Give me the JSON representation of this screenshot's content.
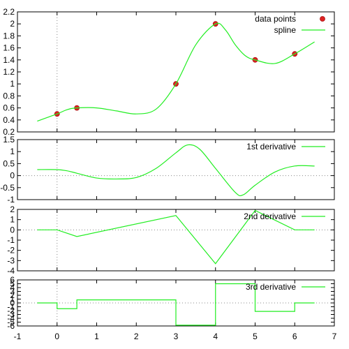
{
  "chart_data": [
    {
      "type": "line",
      "xlim": [
        -1,
        7
      ],
      "ylim": [
        0.2,
        2.2
      ],
      "yticks": [
        "0.2",
        "0.4",
        "0.6",
        "0.8",
        "1",
        "1.2",
        "1.4",
        "1.6",
        "1.8",
        "2",
        "2.2"
      ],
      "zero_axis": "dotted",
      "legend_position": "top-right",
      "series": [
        {
          "name": "data points",
          "kind": "scatter",
          "color": "#dd2222",
          "points": [
            [
              0,
              0.5
            ],
            [
              0.5,
              0.6
            ],
            [
              3,
              1.0
            ],
            [
              4,
              2.0
            ],
            [
              5,
              1.4
            ],
            [
              6,
              1.5
            ]
          ]
        },
        {
          "name": "spline",
          "kind": "line",
          "color": "#22ee22",
          "points": [
            [
              -0.5,
              0.38
            ],
            [
              0,
              0.5
            ],
            [
              0.25,
              0.57
            ],
            [
              0.5,
              0.6
            ],
            [
              1,
              0.6
            ],
            [
              1.5,
              0.55
            ],
            [
              2,
              0.5
            ],
            [
              2.5,
              0.58
            ],
            [
              3,
              1.0
            ],
            [
              3.5,
              1.65
            ],
            [
              4,
              2.0
            ],
            [
              4.25,
              1.9
            ],
            [
              4.5,
              1.65
            ],
            [
              4.75,
              1.47
            ],
            [
              5,
              1.4
            ],
            [
              5.5,
              1.34
            ],
            [
              6,
              1.5
            ],
            [
              6.5,
              1.7
            ]
          ]
        }
      ]
    },
    {
      "type": "line",
      "xlim": [
        -1,
        7
      ],
      "ylim": [
        -1,
        1.5
      ],
      "yticks": [
        "-1",
        "-0.5",
        "0",
        "0.5",
        "1",
        "1.5"
      ],
      "zero_axis": "dotted",
      "legend_position": "top-right",
      "series": [
        {
          "name": "1st derivative",
          "kind": "line",
          "color": "#22ee22",
          "points": [
            [
              -0.5,
              0.25
            ],
            [
              0,
              0.25
            ],
            [
              0.25,
              0.2
            ],
            [
              0.5,
              0.1
            ],
            [
              1,
              -0.1
            ],
            [
              1.5,
              -0.14
            ],
            [
              2,
              -0.08
            ],
            [
              2.5,
              0.3
            ],
            [
              3,
              0.95
            ],
            [
              3.3,
              1.28
            ],
            [
              3.6,
              1.1
            ],
            [
              4,
              0.3
            ],
            [
              4.5,
              -0.7
            ],
            [
              4.7,
              -0.8
            ],
            [
              5,
              -0.4
            ],
            [
              5.5,
              0.15
            ],
            [
              6,
              0.4
            ],
            [
              6.5,
              0.4
            ]
          ]
        }
      ]
    },
    {
      "type": "line",
      "xlim": [
        -1,
        7
      ],
      "ylim": [
        -4,
        2
      ],
      "yticks": [
        "-4",
        "-3",
        "-2",
        "-1",
        "0",
        "1",
        "2"
      ],
      "zero_axis": "dotted",
      "legend_position": "top-right",
      "series": [
        {
          "name": "2nd derivative",
          "kind": "line",
          "color": "#22ee22",
          "points": [
            [
              -0.5,
              0
            ],
            [
              0,
              0
            ],
            [
              0.5,
              -0.65
            ],
            [
              3,
              1.4
            ],
            [
              4,
              -3.3
            ],
            [
              5,
              1.9
            ],
            [
              6,
              0
            ],
            [
              6.5,
              0
            ]
          ]
        }
      ]
    },
    {
      "type": "line",
      "xlim": [
        -1,
        7
      ],
      "ylim": [
        -6,
        6
      ],
      "yticks": [
        "-6",
        "-5",
        "-4",
        "-3",
        "-2",
        "-1",
        "0",
        "1",
        "2",
        "3",
        "4",
        "5",
        "6"
      ],
      "xticks": [
        "-1",
        "0",
        "1",
        "2",
        "3",
        "4",
        "5",
        "6",
        "7"
      ],
      "zero_axis": "dotted",
      "legend_position": "top-right",
      "series": [
        {
          "name": "3rd derivative",
          "kind": "step",
          "color": "#22ee22",
          "points": [
            [
              -0.5,
              0
            ],
            [
              0,
              0
            ],
            [
              0,
              -1.5
            ],
            [
              0.5,
              -1.5
            ],
            [
              0.5,
              0.8
            ],
            [
              3,
              0.8
            ],
            [
              3,
              -5.8
            ],
            [
              4,
              -5.8
            ],
            [
              4,
              5
            ],
            [
              5,
              5
            ],
            [
              5,
              -2.2
            ],
            [
              6,
              -2.2
            ],
            [
              6,
              0
            ],
            [
              6.5,
              0
            ]
          ]
        }
      ]
    }
  ]
}
